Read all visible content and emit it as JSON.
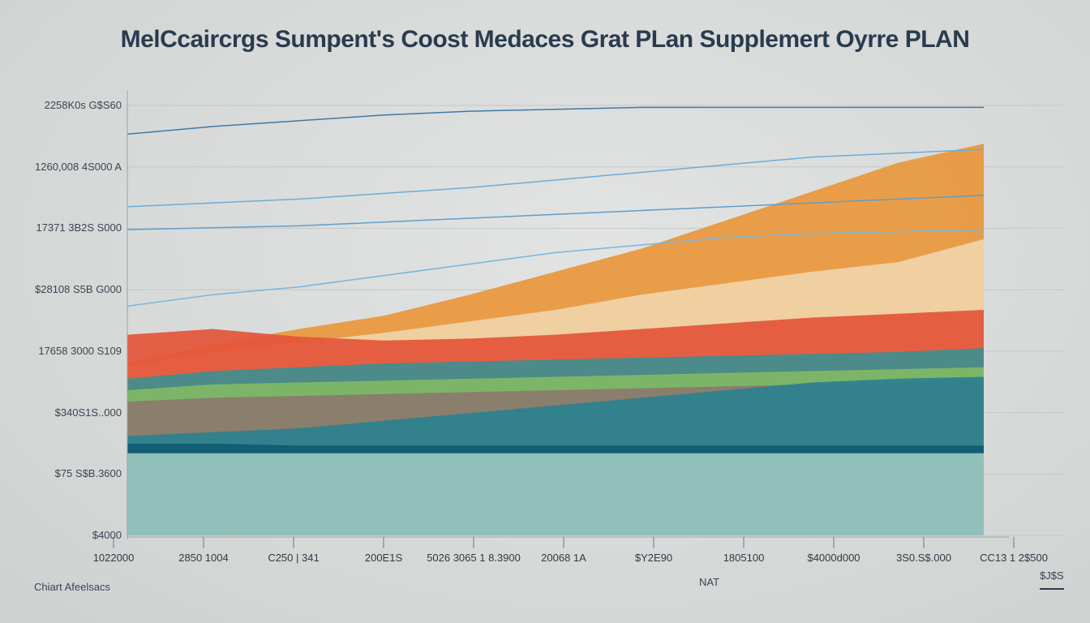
{
  "chart_data": {
    "type": "area",
    "title": "MelCcaircrgs Sumpent's Coost Medaces Grat PLan Supplemert Oyrre PLAN",
    "ytick_labels": [
      "2258K0s G$S60",
      "1260,008 4S000 A",
      "17371 3B2S S000",
      "$28108 S5B G000",
      "17658 3000 S109",
      "$340S1S..000",
      "$75 S$B.3600",
      "$4000"
    ],
    "xtick_labels": [
      "1022000",
      "2850 1004",
      "C250 | 341",
      "200E1S",
      "5026 3065 1 8.3900",
      "20068 1A",
      "$Y2E90",
      "1805100",
      "$4000d000",
      "3S0.S$.000",
      "CC13 1 2$500"
    ],
    "xlabel": "NAT",
    "source_note": "Chiart Afeelsacs",
    "corner_note": "$J$S",
    "x": [
      0,
      1,
      2,
      3,
      4,
      5,
      6,
      7,
      8,
      9,
      10
    ],
    "ylim": [
      0,
      2250
    ],
    "series": [
      {
        "color": "#e9973c",
        "values": [
          900,
          1000,
          1080,
          1150,
          1260,
          1380,
          1500,
          1650,
          1800,
          1950,
          2050
        ]
      },
      {
        "color": "#f0d4a8",
        "values": [
          880,
          960,
          1010,
          1060,
          1120,
          1180,
          1260,
          1320,
          1380,
          1430,
          1550
        ]
      },
      {
        "color": "#e4553a",
        "values": [
          1050,
          1080,
          1040,
          1020,
          1030,
          1050,
          1080,
          1110,
          1140,
          1160,
          1180
        ]
      },
      {
        "color": "#3f8f8f",
        "values": [
          820,
          860,
          880,
          900,
          910,
          920,
          930,
          940,
          950,
          960,
          980
        ]
      },
      {
        "color": "#80b964",
        "values": [
          760,
          790,
          800,
          810,
          820,
          830,
          840,
          850,
          860,
          870,
          880
        ]
      },
      {
        "color": "#8b7a6e",
        "values": [
          700,
          720,
          730,
          740,
          750,
          760,
          770,
          780,
          790,
          800,
          820
        ]
      },
      {
        "color": "#2a8190",
        "values": [
          520,
          540,
          560,
          600,
          640,
          680,
          720,
          760,
          800,
          820,
          830
        ]
      },
      {
        "color": "#0f5b73",
        "values": [
          480,
          480,
          470,
          470,
          470,
          470,
          470,
          470,
          470,
          470,
          470
        ]
      },
      {
        "color": "#9cc8c0",
        "values": [
          430,
          430,
          430,
          430,
          430,
          430,
          430,
          430,
          430,
          430,
          430
        ]
      }
    ],
    "lines": [
      {
        "color": "#3d7aa8",
        "values": [
          2100,
          2140,
          2170,
          2200,
          2220,
          2230,
          2240,
          2240,
          2240,
          2240,
          2240
        ]
      },
      {
        "color": "#6aaed6",
        "values": [
          1720,
          1740,
          1760,
          1790,
          1820,
          1860,
          1900,
          1940,
          1980,
          2000,
          2020
        ]
      },
      {
        "color": "#5d9fc9",
        "values": [
          1600,
          1610,
          1620,
          1640,
          1660,
          1680,
          1700,
          1720,
          1740,
          1760,
          1780
        ]
      },
      {
        "color": "#79b6dc",
        "values": [
          1200,
          1260,
          1300,
          1360,
          1420,
          1480,
          1520,
          1560,
          1580,
          1590,
          1600
        ]
      }
    ]
  }
}
